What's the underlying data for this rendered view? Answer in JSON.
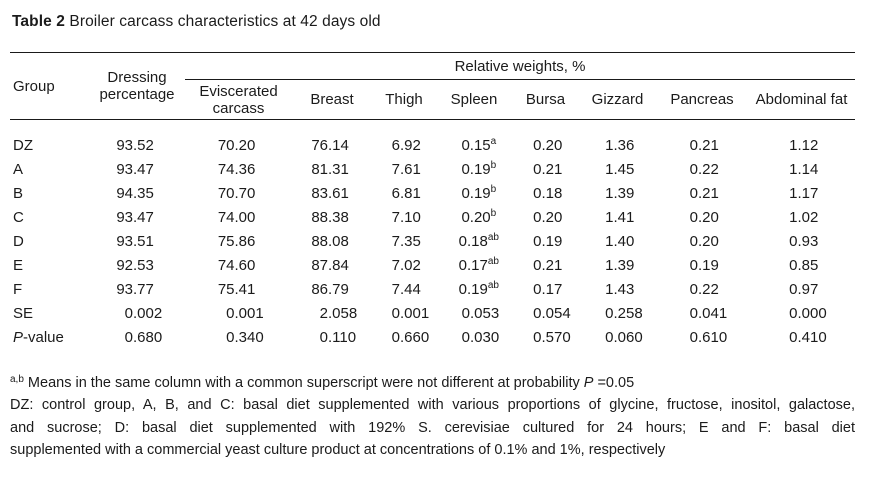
{
  "colors": {
    "background": "#ffffff",
    "text": "#1b1b1b",
    "rule": "#1a1a1a"
  },
  "title": {
    "label": "Table 2",
    "text": " Broiler carcass characteristics at 42 days old"
  },
  "table": {
    "columns": {
      "group": "Group",
      "dressing": "Dressing percentage",
      "spanner": "Relative weights, %",
      "sub": [
        "Eviscerated carcass",
        "Breast",
        "Thigh",
        "Spleen",
        "Bursa",
        "Gizzard",
        "Pancreas",
        "Abdominal fat"
      ]
    },
    "rows": [
      {
        "group": "DZ",
        "dressing": "93.52",
        "eviscerated": "70.20",
        "breast": "76.14",
        "thigh": "6.92",
        "spleen": "0.15",
        "spleen_sup": "a",
        "bursa": "0.20",
        "gizzard": "1.36",
        "pancreas": "0.21",
        "abdominal": "1.12"
      },
      {
        "group": "A",
        "dressing": "93.47",
        "eviscerated": "74.36",
        "breast": "81.31",
        "thigh": "7.61",
        "spleen": "0.19",
        "spleen_sup": "b",
        "bursa": "0.21",
        "gizzard": "1.45",
        "pancreas": "0.22",
        "abdominal": "1.14"
      },
      {
        "group": "B",
        "dressing": "94.35",
        "eviscerated": "70.70",
        "breast": "83.61",
        "thigh": "6.81",
        "spleen": "0.19",
        "spleen_sup": "b",
        "bursa": "0.18",
        "gizzard": "1.39",
        "pancreas": "0.21",
        "abdominal": "1.17"
      },
      {
        "group": "C",
        "dressing": "93.47",
        "eviscerated": "74.00",
        "breast": "88.38",
        "thigh": "7.10",
        "spleen": "0.20",
        "spleen_sup": "b",
        "bursa": "0.20",
        "gizzard": "1.41",
        "pancreas": "0.20",
        "abdominal": "1.02"
      },
      {
        "group": "D",
        "dressing": "93.51",
        "eviscerated": "75.86",
        "breast": "88.08",
        "thigh": "7.35",
        "spleen": "0.18",
        "spleen_sup": "ab",
        "bursa": "0.19",
        "gizzard": "1.40",
        "pancreas": "0.20",
        "abdominal": "0.93"
      },
      {
        "group": "E",
        "dressing": "92.53",
        "eviscerated": "74.60",
        "breast": "87.84",
        "thigh": "7.02",
        "spleen": "0.17",
        "spleen_sup": "ab",
        "bursa": "0.21",
        "gizzard": "1.39",
        "pancreas": "0.19",
        "abdominal": "0.85"
      },
      {
        "group": "F",
        "dressing": "93.77",
        "eviscerated": "75.41",
        "breast": "86.79",
        "thigh": "7.44",
        "spleen": "0.19",
        "spleen_sup": "ab",
        "bursa": "0.17",
        "gizzard": "1.43",
        "pancreas": "0.22",
        "abdominal": "0.97"
      },
      {
        "group": "SE",
        "dressing": "0.002",
        "eviscerated": "0.001",
        "breast": "2.058",
        "thigh": "0.001",
        "spleen": "0.053",
        "bursa": "0.054",
        "gizzard": "0.258",
        "pancreas": "0.041",
        "abdominal": "0.000"
      },
      {
        "group_italic": "P",
        "group": "-value",
        "dressing": "0.680",
        "eviscerated": "0.340",
        "breast": "0.110",
        "thigh": "0.660",
        "spleen": "0.030",
        "bursa": "0.570",
        "gizzard": "0.060",
        "pancreas": "0.610",
        "abdominal": "0.410"
      }
    ]
  },
  "footnotes": {
    "note1_sup": "a,b",
    "note1_text": " Means in the same column with a common superscript were not different at probability ",
    "note1_p": "P",
    "note1_end": " =0.05",
    "note2_lines": [
      "DZ: control group, A, B, and C: basal diet supplemented with various proportions of glycine, fructose, inositol, galactose,",
      "and sucrose; D: basal diet supplemented with 192% S. cerevisiae cultured for 24 hours; E and F: basal diet",
      "supplemented with a commercial yeast culture product at concentrations of 0.1% and 1%, respectively"
    ]
  }
}
